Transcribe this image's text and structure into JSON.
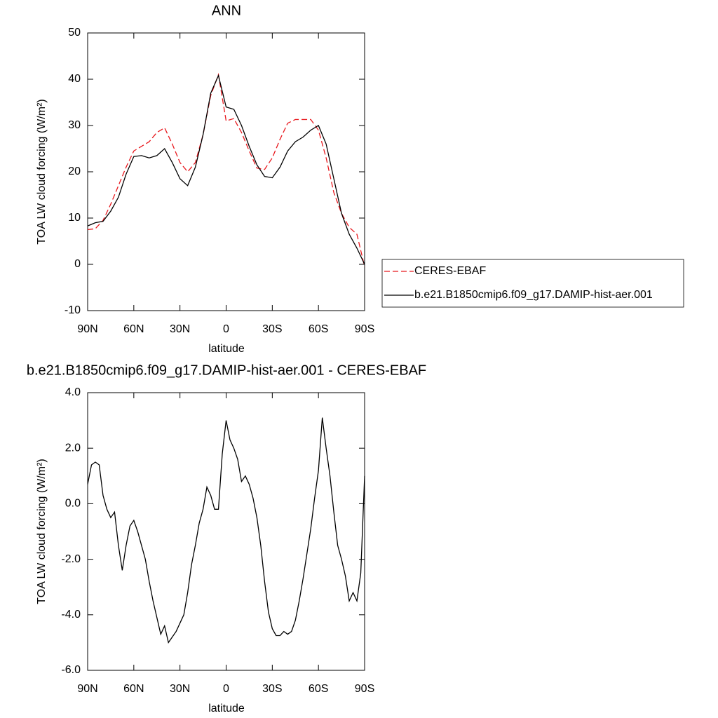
{
  "chart_data": [
    {
      "type": "line",
      "title": "ANN",
      "xlabel": "latitude",
      "ylabel": "TOA LW cloud forcing (W/m²)",
      "x": [
        90,
        85,
        80,
        75,
        70,
        65,
        60,
        55,
        50,
        45,
        40,
        35,
        30,
        25,
        20,
        15,
        10,
        5,
        0,
        -5,
        -10,
        -15,
        -20,
        -25,
        -30,
        -35,
        -40,
        -45,
        -50,
        -55,
        -60,
        -65,
        -70,
        -75,
        -80,
        -85,
        -90
      ],
      "series": [
        {
          "name": "CERES-EBAF",
          "color": "#e8191e",
          "linestyle": "dashed",
          "values": [
            7.5,
            7.7,
            9.5,
            13,
            17,
            21,
            24.5,
            25.5,
            26.5,
            28.5,
            29.5,
            26,
            22,
            20,
            22,
            28,
            36.5,
            41,
            31,
            31.5,
            28.5,
            24.5,
            20.8,
            20.5,
            23,
            27,
            30.5,
            31.3,
            31.3,
            31.3,
            29,
            23,
            15.5,
            11,
            8,
            6.5,
            -0.5
          ]
        },
        {
          "name": "b.e21.B1850cmip6.f09_g17.DAMIP-hist-aer.001",
          "color": "#000000",
          "linestyle": "solid",
          "values": [
            8.3,
            9,
            9.3,
            11.5,
            14.5,
            19.5,
            23.3,
            23.5,
            23,
            23.5,
            25,
            22,
            18.5,
            17,
            21,
            28,
            37,
            40.8,
            34,
            33.5,
            30,
            25.5,
            21.5,
            19,
            18.7,
            21,
            24.5,
            26.5,
            27.5,
            29,
            30,
            26,
            18.5,
            11,
            6.5,
            3.5,
            0
          ]
        }
      ],
      "xlim": [
        90,
        -90
      ],
      "xticks": [
        {
          "value": 90,
          "label": "90N"
        },
        {
          "value": 60,
          "label": "60N"
        },
        {
          "value": 30,
          "label": "30N"
        },
        0,
        {
          "value": -30,
          "label": "30S"
        },
        {
          "value": -60,
          "label": "60S"
        },
        {
          "value": -90,
          "label": "90S"
        }
      ],
      "ylim": [
        -10,
        50
      ],
      "yticks": [
        -10,
        0,
        10,
        20,
        30,
        40,
        50
      ],
      "legend": "right"
    },
    {
      "type": "line",
      "title": "b.e21.B1850cmip6.f09_g17.DAMIP-hist-aer.001 - CERES-EBAF",
      "xlabel": "latitude",
      "ylabel": "TOA LW cloud forcing (W/m²)",
      "x": [
        90,
        87.5,
        85,
        82.5,
        80,
        77.5,
        75,
        72.5,
        70,
        67.5,
        65,
        62.5,
        60,
        57.5,
        55,
        52.5,
        50,
        47.5,
        45,
        42.5,
        40,
        37.5,
        35,
        32.5,
        30,
        27.5,
        25,
        22.5,
        20,
        17.5,
        15,
        12.5,
        10,
        7.5,
        5,
        2.5,
        0,
        -2.5,
        -5,
        -7.5,
        -10,
        -12.5,
        -15,
        -17.5,
        -20,
        -22.5,
        -25,
        -27.5,
        -30,
        -32.5,
        -35,
        -37.5,
        -40,
        -42.5,
        -45,
        -47.5,
        -50,
        -52.5,
        -55,
        -57.5,
        -60,
        -62.5,
        -65,
        -67.5,
        -70,
        -72.5,
        -75,
        -77.5,
        -80,
        -82.5,
        -85,
        -87.5,
        -90
      ],
      "values": [
        0.7,
        1.4,
        1.5,
        1.4,
        0.3,
        -0.2,
        -0.5,
        -0.3,
        -1.5,
        -2.4,
        -1.5,
        -0.8,
        -0.6,
        -1.0,
        -1.5,
        -2.0,
        -2.8,
        -3.5,
        -4.1,
        -4.7,
        -4.4,
        -5.0,
        -4.8,
        -4.6,
        -4.3,
        -4.0,
        -3.2,
        -2.2,
        -1.5,
        -0.7,
        -0.2,
        0.6,
        0.3,
        -0.2,
        -0.2,
        1.8,
        3.0,
        2.3,
        2.0,
        1.6,
        0.8,
        1.0,
        0.7,
        0.2,
        -0.5,
        -1.5,
        -2.8,
        -3.9,
        -4.5,
        -4.75,
        -4.75,
        -4.6,
        -4.7,
        -4.6,
        -4.2,
        -3.5,
        -2.7,
        -1.8,
        -0.9,
        0.2,
        1.2,
        3.1,
        2.0,
        1.0,
        -0.3,
        -1.5,
        -2.0,
        -2.6,
        -3.5,
        -3.2,
        -3.5,
        -2.5,
        1.0
      ],
      "color": "#000000",
      "xlim": [
        90,
        -90
      ],
      "xticks": [
        {
          "value": 90,
          "label": "90N"
        },
        {
          "value": 60,
          "label": "60N"
        },
        {
          "value": 30,
          "label": "30N"
        },
        0,
        {
          "value": -30,
          "label": "30S"
        },
        {
          "value": -60,
          "label": "60S"
        },
        {
          "value": -90,
          "label": "90S"
        }
      ],
      "ylim": [
        -6,
        4
      ],
      "yticks": [
        {
          "value": -6,
          "label": "-6.0"
        },
        {
          "value": -4,
          "label": "-4.0"
        },
        {
          "value": -2,
          "label": "-2.0"
        },
        {
          "value": 0,
          "label": "0.0"
        },
        {
          "value": 2,
          "label": "2.0"
        },
        {
          "value": 4,
          "label": "4.0"
        }
      ]
    }
  ]
}
